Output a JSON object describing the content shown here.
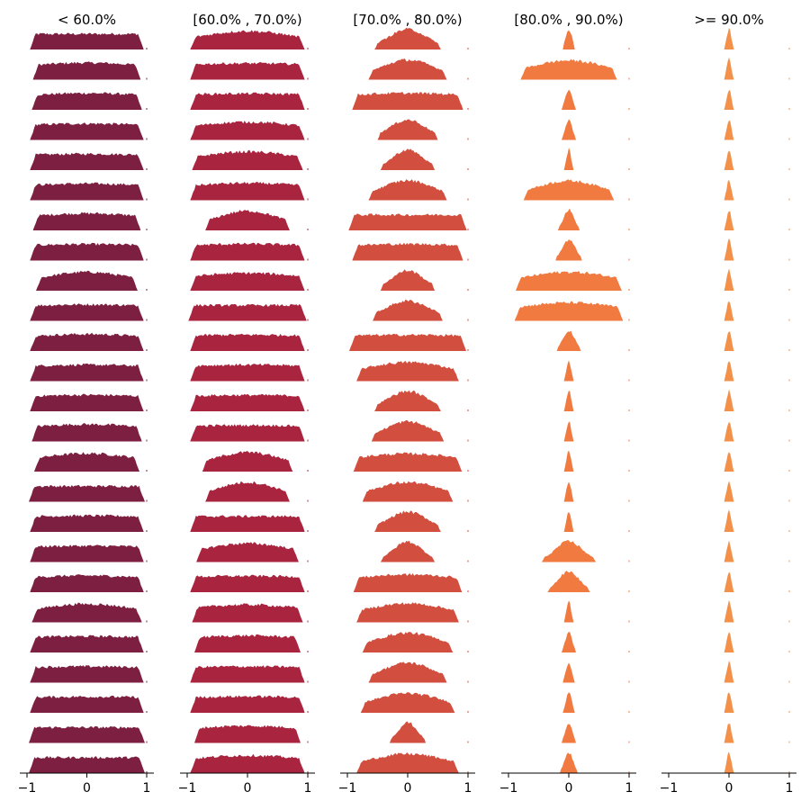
{
  "chart_data": {
    "type": "ridgeline-histogram-grid",
    "panels": [
      {
        "title": "< 60.0%",
        "color": "#7d1f40",
        "xlim": [
          -1,
          1
        ],
        "xticks": [
          "−1",
          "0",
          "1"
        ],
        "rows": [
          {
            "w": 0.95,
            "peak": 0.3,
            "flat": 0.92
          },
          {
            "w": 0.9,
            "peak": 0.4,
            "flat": 0.75
          },
          {
            "w": 0.92,
            "peak": 0.4,
            "flat": 0.8
          },
          {
            "w": 0.95,
            "peak": 0.4,
            "flat": 0.85
          },
          {
            "w": 0.95,
            "peak": 0.4,
            "flat": 0.88
          },
          {
            "w": 0.95,
            "peak": 0.45,
            "flat": 0.8
          },
          {
            "w": 0.9,
            "peak": 0.4,
            "flat": 0.72
          },
          {
            "w": 0.95,
            "peak": 0.45,
            "flat": 0.85
          },
          {
            "w": 0.85,
            "peak": 0.45,
            "flat": 0.4
          },
          {
            "w": 0.95,
            "peak": 0.4,
            "flat": 0.85
          },
          {
            "w": 0.95,
            "peak": 0.4,
            "flat": 0.75
          },
          {
            "w": 0.95,
            "peak": 0.4,
            "flat": 0.85
          },
          {
            "w": 0.95,
            "peak": 0.4,
            "flat": 0.85
          },
          {
            "w": 0.92,
            "peak": 0.45,
            "flat": 0.7
          },
          {
            "w": 0.88,
            "peak": 0.45,
            "flat": 0.5
          },
          {
            "w": 0.97,
            "peak": 0.35,
            "flat": 0.95
          },
          {
            "w": 0.95,
            "peak": 0.45,
            "flat": 0.88
          },
          {
            "w": 0.95,
            "peak": 0.45,
            "flat": 0.88
          },
          {
            "w": 0.95,
            "peak": 0.4,
            "flat": 0.8
          },
          {
            "w": 0.92,
            "peak": 0.45,
            "flat": 0.45
          },
          {
            "w": 0.95,
            "peak": 0.45,
            "flat": 0.88
          },
          {
            "w": 0.95,
            "peak": 0.45,
            "flat": 0.88
          },
          {
            "w": 0.95,
            "peak": 0.45,
            "flat": 0.9
          },
          {
            "w": 0.97,
            "peak": 0.45,
            "flat": 0.93
          },
          {
            "w": 0.97,
            "peak": 0.4,
            "flat": 0.95
          }
        ]
      },
      {
        "title": "[60.0% , 70.0%)",
        "color": "#a8243f",
        "xlim": [
          -1,
          1
        ],
        "xticks": [
          "−1",
          "0",
          "1"
        ],
        "rows": [
          {
            "w": 0.95,
            "peak": 0.4,
            "flat": 0.45
          },
          {
            "w": 0.95,
            "peak": 0.45,
            "flat": 0.85
          },
          {
            "w": 0.95,
            "peak": 0.45,
            "flat": 0.88
          },
          {
            "w": 0.95,
            "peak": 0.45,
            "flat": 0.55
          },
          {
            "w": 0.92,
            "peak": 0.45,
            "flat": 0.45
          },
          {
            "w": 0.95,
            "peak": 0.45,
            "flat": 0.7
          },
          {
            "w": 0.7,
            "peak": 0.45,
            "flat": 0.25
          },
          {
            "w": 0.95,
            "peak": 0.45,
            "flat": 0.8
          },
          {
            "w": 0.95,
            "peak": 0.45,
            "flat": 0.6
          },
          {
            "w": 0.98,
            "peak": 0.5,
            "flat": 1.0
          },
          {
            "w": 0.95,
            "peak": 0.45,
            "flat": 0.88
          },
          {
            "w": 0.95,
            "peak": 0.45,
            "flat": 0.85
          },
          {
            "w": 0.95,
            "peak": 0.45,
            "flat": 0.88
          },
          {
            "w": 0.95,
            "peak": 0.45,
            "flat": 0.88
          },
          {
            "w": 0.75,
            "peak": 0.45,
            "flat": 0.28
          },
          {
            "w": 0.7,
            "peak": 0.45,
            "flat": 0.25
          },
          {
            "w": 0.95,
            "peak": 0.45,
            "flat": 1.0
          },
          {
            "w": 0.85,
            "peak": 0.45,
            "flat": 0.4
          },
          {
            "w": 0.95,
            "peak": 0.45,
            "flat": 0.88
          },
          {
            "w": 0.92,
            "peak": 0.45,
            "flat": 0.6
          },
          {
            "w": 0.88,
            "peak": 0.45,
            "flat": 0.75
          },
          {
            "w": 0.95,
            "peak": 0.45,
            "flat": 0.88
          },
          {
            "w": 0.95,
            "peak": 0.45,
            "flat": 0.85
          },
          {
            "w": 0.88,
            "peak": 0.45,
            "flat": 0.72
          },
          {
            "w": 0.95,
            "peak": 0.45,
            "flat": 0.6
          }
        ]
      },
      {
        "title": "[70.0% , 80.0%)",
        "color": "#d24e3e",
        "xlim": [
          -1,
          1
        ],
        "xticks": [
          "−1",
          "0",
          "1"
        ],
        "rows": [
          {
            "w": 0.55,
            "peak": 0.45,
            "flat": 0.1
          },
          {
            "w": 0.65,
            "peak": 0.45,
            "flat": 0.18
          },
          {
            "w": 0.92,
            "peak": 0.45,
            "flat": 0.8
          },
          {
            "w": 0.5,
            "peak": 0.45,
            "flat": 0.12
          },
          {
            "w": 0.45,
            "peak": 0.45,
            "flat": 0.08
          },
          {
            "w": 0.65,
            "peak": 0.45,
            "flat": 0.18
          },
          {
            "w": 0.98,
            "peak": 0.45,
            "flat": 0.92
          },
          {
            "w": 0.92,
            "peak": 0.45,
            "flat": 0.82
          },
          {
            "w": 0.45,
            "peak": 0.45,
            "flat": 0.1
          },
          {
            "w": 0.58,
            "peak": 0.45,
            "flat": 0.15
          },
          {
            "w": 0.97,
            "peak": 0.45,
            "flat": 0.9
          },
          {
            "w": 0.85,
            "peak": 0.45,
            "flat": 0.35
          },
          {
            "w": 0.55,
            "peak": 0.45,
            "flat": 0.12
          },
          {
            "w": 0.6,
            "peak": 0.45,
            "flat": 0.15
          },
          {
            "w": 0.9,
            "peak": 0.45,
            "flat": 0.55
          },
          {
            "w": 0.75,
            "peak": 0.45,
            "flat": 0.25
          },
          {
            "w": 0.55,
            "peak": 0.45,
            "flat": 0.12
          },
          {
            "w": 0.45,
            "peak": 0.45,
            "flat": 0.06
          },
          {
            "w": 0.9,
            "peak": 0.45,
            "flat": 0.6
          },
          {
            "w": 0.85,
            "peak": 0.45,
            "flat": 0.35
          },
          {
            "w": 0.75,
            "peak": 0.45,
            "flat": 0.22
          },
          {
            "w": 0.65,
            "peak": 0.45,
            "flat": 0.16
          },
          {
            "w": 0.78,
            "peak": 0.45,
            "flat": 0.25
          },
          {
            "w": 0.3,
            "peak": 0.45,
            "flat": 0.05
          },
          {
            "w": 0.85,
            "peak": 0.45,
            "flat": 0.3
          }
        ]
      },
      {
        "title": "[80.0% , 90.0%)",
        "color": "#f07a40",
        "xlim": [
          -1,
          1
        ],
        "xticks": [
          "−1",
          "0",
          "1"
        ],
        "rows": [
          {
            "w": 0.1,
            "peak": 0.5,
            "flat": 0.01
          },
          {
            "w": 0.8,
            "peak": 0.45,
            "flat": 0.3
          },
          {
            "w": 0.12,
            "peak": 0.45,
            "flat": 0.01
          },
          {
            "w": 0.12,
            "peak": 0.45,
            "flat": 0.01
          },
          {
            "w": 0.08,
            "peak": 0.45,
            "flat": 0.01
          },
          {
            "w": 0.75,
            "peak": 0.45,
            "flat": 0.25
          },
          {
            "w": 0.18,
            "peak": 0.45,
            "flat": 0.02
          },
          {
            "w": 0.22,
            "peak": 0.45,
            "flat": 0.03
          },
          {
            "w": 0.88,
            "peak": 0.45,
            "flat": 0.4
          },
          {
            "w": 0.9,
            "peak": 0.45,
            "flat": 0.5
          },
          {
            "w": 0.2,
            "peak": 0.45,
            "flat": 0.02
          },
          {
            "w": 0.08,
            "peak": 0.45,
            "flat": 0.01
          },
          {
            "w": 0.08,
            "peak": 0.45,
            "flat": 0.01
          },
          {
            "w": 0.08,
            "peak": 0.45,
            "flat": 0.01
          },
          {
            "w": 0.08,
            "peak": 0.45,
            "flat": 0.01
          },
          {
            "w": 0.08,
            "peak": 0.45,
            "flat": 0.01
          },
          {
            "w": 0.08,
            "peak": 0.45,
            "flat": 0.01
          },
          {
            "w": 0.45,
            "peak": 0.45,
            "flat": 0.04
          },
          {
            "w": 0.35,
            "peak": 0.45,
            "flat": 0.04
          },
          {
            "w": 0.08,
            "peak": 0.45,
            "flat": 0.01
          },
          {
            "w": 0.12,
            "peak": 0.45,
            "flat": 0.01
          },
          {
            "w": 0.1,
            "peak": 0.45,
            "flat": 0.01
          },
          {
            "w": 0.1,
            "peak": 0.45,
            "flat": 0.01
          },
          {
            "w": 0.12,
            "peak": 0.45,
            "flat": 0.01
          },
          {
            "w": 0.15,
            "peak": 0.45,
            "flat": 0.01
          }
        ]
      },
      {
        "title": ">= 90.0%",
        "color": "#f3904a",
        "xlim": [
          -1,
          1
        ],
        "xticks": [
          "−1",
          "0",
          "1"
        ],
        "rows": [
          {
            "w": 0.08,
            "peak": 0.45,
            "flat": 0.01
          },
          {
            "w": 0.08,
            "peak": 0.45,
            "flat": 0.01
          },
          {
            "w": 0.08,
            "peak": 0.45,
            "flat": 0.01
          },
          {
            "w": 0.08,
            "peak": 0.45,
            "flat": 0.01
          },
          {
            "w": 0.08,
            "peak": 0.45,
            "flat": 0.01
          },
          {
            "w": 0.08,
            "peak": 0.45,
            "flat": 0.01
          },
          {
            "w": 0.08,
            "peak": 0.45,
            "flat": 0.01
          },
          {
            "w": 0.08,
            "peak": 0.45,
            "flat": 0.01
          },
          {
            "w": 0.08,
            "peak": 0.45,
            "flat": 0.01
          },
          {
            "w": 0.08,
            "peak": 0.45,
            "flat": 0.01
          },
          {
            "w": 0.08,
            "peak": 0.45,
            "flat": 0.01
          },
          {
            "w": 0.08,
            "peak": 0.45,
            "flat": 0.01
          },
          {
            "w": 0.08,
            "peak": 0.45,
            "flat": 0.01
          },
          {
            "w": 0.08,
            "peak": 0.45,
            "flat": 0.01
          },
          {
            "w": 0.08,
            "peak": 0.45,
            "flat": 0.01
          },
          {
            "w": 0.08,
            "peak": 0.45,
            "flat": 0.01
          },
          {
            "w": 0.08,
            "peak": 0.45,
            "flat": 0.01
          },
          {
            "w": 0.08,
            "peak": 0.45,
            "flat": 0.01
          },
          {
            "w": 0.08,
            "peak": 0.45,
            "flat": 0.01
          },
          {
            "w": 0.08,
            "peak": 0.45,
            "flat": 0.01
          },
          {
            "w": 0.08,
            "peak": 0.45,
            "flat": 0.01
          },
          {
            "w": 0.08,
            "peak": 0.45,
            "flat": 0.01
          },
          {
            "w": 0.08,
            "peak": 0.45,
            "flat": 0.01
          },
          {
            "w": 0.08,
            "peak": 0.45,
            "flat": 0.01
          },
          {
            "w": 0.08,
            "peak": 0.45,
            "flat": 0.01
          }
        ]
      }
    ]
  }
}
